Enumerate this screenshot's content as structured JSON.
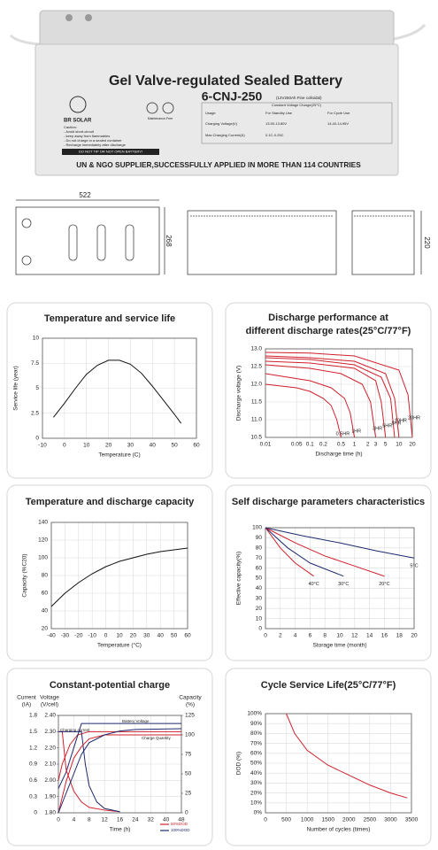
{
  "product": {
    "title": "Gel Valve-regulated Sealed Battery",
    "model": "6-CNJ-250",
    "spec": "(12V250Ah Fine colloidal)",
    "brand": "BR SOLAR",
    "maintenance": "Maintenance-Free",
    "table": {
      "header": "Constant Voltage Charge(25°C)",
      "rows": [
        [
          "Usage",
          "For Standby Use",
          "For Cycle Use"
        ],
        [
          "Charging Voltage(V)",
          "13.50-13.80V",
          "14.40-14.95V"
        ],
        [
          "Max.Charging Current(A)",
          "0.1C-0.25C"
        ]
      ]
    },
    "caution": [
      "Caution:",
      "- Avoid short-circuit",
      "- keep away from flammables",
      "- Do not charge in a sealed container",
      "- Recharge immediately after discharge"
    ],
    "warning": "DO NOT TIP OR NOT OPEN BATTERY!",
    "footer": "UN & NGO SUPPLIER,SUCCESSFULLY APPLIED IN MORE THAN 114 COUNTRIES"
  },
  "dimensions": {
    "length": "522",
    "height": "268",
    "width": "220"
  },
  "chart_data": [
    {
      "type": "line",
      "title": "Temperature and service life",
      "x_label": "Temperature (C)",
      "y_label": "Service life (year)",
      "grid": true,
      "xlim": [
        -10,
        60
      ],
      "xticks": [
        -10,
        0,
        10,
        20,
        30,
        40,
        50,
        60
      ],
      "ylim": [
        0,
        10
      ],
      "yticks": [
        0,
        2.5,
        5,
        7.5,
        10
      ],
      "series": [
        {
          "color": "#111111",
          "x": [
            -5,
            0,
            5,
            10,
            15,
            20,
            25,
            30,
            35,
            40,
            45,
            50,
            53
          ],
          "values": [
            2.1,
            3.5,
            5,
            6.4,
            7.3,
            7.8,
            7.8,
            7.4,
            6.5,
            5.2,
            3.8,
            2.4,
            1.5
          ]
        }
      ]
    },
    {
      "type": "line",
      "title": [
        "Discharge performance at",
        "different discharge rates(25°C/77°F)"
      ],
      "x_label": "Discharge time (h)",
      "y_label": "Discharge voltage (V)",
      "grid": true,
      "xlog": true,
      "xlim": [
        0.01,
        20
      ],
      "xticks": [
        0.01,
        0.05,
        0.1,
        0.2,
        0.5,
        1,
        2,
        3,
        5,
        10,
        20
      ],
      "ylim": [
        10.5,
        13
      ],
      "yticks": [
        10.5,
        {
          "value": 11,
          "label": "11.0"
        },
        11.5,
        {
          "value": 12,
          "label": "12.0"
        },
        12.5,
        {
          "value": 13,
          "label": "13.0"
        }
      ],
      "series": [
        {
          "name": "0.5HR",
          "color": "#d0202c",
          "x": [
            0.01,
            0.05,
            0.1,
            0.2,
            0.3,
            0.4,
            0.5
          ],
          "values": [
            12.0,
            11.9,
            11.8,
            11.6,
            11.4,
            11.0,
            10.5
          ]
        },
        {
          "name": "1HR",
          "color": "#d0202c",
          "x": [
            0.01,
            0.1,
            0.3,
            0.6,
            0.8,
            1
          ],
          "values": [
            12.3,
            12.1,
            11.9,
            11.6,
            11.2,
            10.5
          ]
        },
        {
          "name": "3HR",
          "color": "#d0202c",
          "x": [
            0.01,
            0.1,
            0.5,
            1.5,
            2.3,
            3
          ],
          "values": [
            12.55,
            12.45,
            12.3,
            12.0,
            11.5,
            10.5
          ]
        },
        {
          "name": "5HR",
          "color": "#d0202c",
          "x": [
            0.01,
            0.1,
            1,
            3,
            4,
            5
          ],
          "values": [
            12.65,
            12.6,
            12.45,
            12.1,
            11.5,
            10.5
          ]
        },
        {
          "name": "8HR",
          "color": "#d0202c",
          "x": [
            0.01,
            0.1,
            1,
            4,
            6.5,
            8
          ],
          "values": [
            12.75,
            12.7,
            12.55,
            12.2,
            11.6,
            10.5
          ]
        },
        {
          "name": "10HR",
          "color": "#d0202c",
          "x": [
            0.01,
            0.1,
            1,
            5,
            8,
            10
          ],
          "values": [
            12.8,
            12.75,
            12.65,
            12.3,
            11.6,
            10.5
          ]
        },
        {
          "name": "20HR",
          "color": "#d0202c",
          "x": [
            0.01,
            0.1,
            1,
            10,
            16,
            20
          ],
          "values": [
            12.9,
            12.88,
            12.8,
            12.4,
            11.7,
            10.5
          ]
        }
      ]
    },
    {
      "type": "line",
      "title": "Temperature and discharge capacity",
      "x_label": "Temperature (°C)",
      "y_label": "Capacity (%C20)",
      "grid": true,
      "xlim": [
        -40,
        60
      ],
      "xticks": [
        -40,
        -30,
        -20,
        -10,
        0,
        10,
        20,
        30,
        40,
        50,
        60
      ],
      "ylim": [
        20,
        140
      ],
      "yticks": [
        20,
        40,
        60,
        80,
        100,
        120,
        140
      ],
      "series": [
        {
          "color": "#111111",
          "x": [
            -40,
            -30,
            -20,
            -10,
            0,
            10,
            20,
            30,
            40,
            50,
            60
          ],
          "values": [
            45,
            60,
            72,
            82,
            90,
            96,
            100,
            104,
            107,
            109,
            111
          ]
        }
      ]
    },
    {
      "type": "line",
      "title": "Self discharge parameters characteristics",
      "x_label": "Storage time (month)",
      "y_label": "Effective capacity(%)",
      "grid": true,
      "xlim": [
        0,
        20
      ],
      "xticks": [
        0,
        2,
        4,
        6,
        8,
        10,
        12,
        14,
        16,
        18,
        20
      ],
      "ylim": [
        0,
        100
      ],
      "yticks": [
        0,
        10,
        20,
        30,
        40,
        50,
        60,
        70,
        80,
        90,
        100
      ],
      "series": [
        {
          "name": "40°C",
          "color": "#d0202c",
          "x": [
            0,
            2,
            4,
            6.5
          ],
          "values": [
            100,
            80,
            65,
            52
          ]
        },
        {
          "name": "30°C",
          "color": "#1f2a6e",
          "x": [
            0,
            3,
            6,
            10.5
          ],
          "values": [
            100,
            80,
            65,
            52
          ]
        },
        {
          "name": "20°C",
          "color": "#d0202c",
          "x": [
            0,
            4,
            8,
            12,
            16
          ],
          "values": [
            100,
            85,
            72,
            62,
            52
          ]
        },
        {
          "name": "5°C",
          "color": "#1f2a6e",
          "x": [
            0,
            5,
            10,
            15,
            20
          ],
          "values": [
            100,
            92,
            85,
            77,
            70
          ]
        }
      ]
    },
    {
      "type": "line",
      "title": "Constant-potential charge",
      "x_label": "Time (h)",
      "y_label": [
        "Current",
        "(IA)"
      ],
      "y2_label": [
        "Voltage",
        "(V/cell)"
      ],
      "y3_label": [
        "Capacity",
        "(%)"
      ],
      "grid": true,
      "xscale": "piecewise",
      "xlim": [
        0,
        48
      ],
      "xticks": [
        0,
        4,
        8,
        12,
        16,
        24,
        32,
        40,
        48
      ],
      "ylim": [
        0,
        1.8
      ],
      "yticks": [
        0,
        0.3,
        0.6,
        0.9,
        1.2,
        1.5,
        1.8
      ],
      "y2lim": [
        1.8,
        2.4
      ],
      "y2ticks": [
        {
          "value": 1.8,
          "label": "1.80"
        },
        {
          "value": 1.9,
          "label": "1.90"
        },
        {
          "value": 2,
          "label": "2.00"
        },
        {
          "value": 2.1,
          "label": "2.10"
        },
        {
          "value": 2.2,
          "label": "2.20"
        },
        {
          "value": 2.3,
          "label": "2.30"
        },
        {
          "value": 2.4,
          "label": "2.40"
        }
      ],
      "y3lim": [
        0,
        125
      ],
      "y3ticks": [
        0,
        25,
        50,
        75,
        100,
        125
      ],
      "annotations": [
        "Battery Voltage",
        "Charging current",
        "Charge Quantity"
      ],
      "legend": [
        {
          "name": "50%DOD",
          "color": "#d0202c"
        },
        {
          "name": "100%DOD",
          "color": "#1f2a6e"
        }
      ],
      "series": [
        {
          "axis": "y2",
          "color": "#d0202c",
          "x": [
            0,
            1,
            3,
            5,
            8,
            16,
            48
          ],
          "values": [
            2.0,
            2.1,
            2.22,
            2.28,
            2.3,
            2.3,
            2.3
          ]
        },
        {
          "axis": "y2",
          "color": "#1f2a6e",
          "x": [
            0,
            2,
            4,
            6,
            8,
            48
          ],
          "values": [
            1.95,
            2.05,
            2.2,
            2.35,
            2.35,
            2.35
          ]
        },
        {
          "axis": "y",
          "color": "#d0202c",
          "x": [
            0,
            1,
            2,
            4,
            6,
            8,
            12,
            16
          ],
          "values": [
            1.5,
            1.5,
            0.8,
            0.4,
            0.2,
            0.1,
            0.05,
            0.02
          ]
        },
        {
          "axis": "y",
          "color": "#1f2a6e",
          "x": [
            0,
            6,
            7,
            8,
            10,
            12,
            16
          ],
          "values": [
            1.5,
            1.5,
            0.9,
            0.5,
            0.2,
            0.08,
            0.02
          ]
        },
        {
          "axis": "y3",
          "color": "#d0202c",
          "x": [
            0,
            2,
            4,
            6,
            8,
            12,
            16,
            48
          ],
          "values": [
            0,
            40,
            70,
            85,
            95,
            100,
            100,
            100
          ]
        },
        {
          "axis": "y3",
          "color": "#1f2a6e",
          "x": [
            0,
            2,
            4,
            6,
            8,
            12,
            16,
            24,
            48
          ],
          "values": [
            0,
            25,
            50,
            75,
            90,
            100,
            105,
            107,
            108
          ]
        }
      ]
    },
    {
      "type": "line",
      "title": "Cycle Service Life(25°C/77°F)",
      "x_label": "Number of cycles (times)",
      "y_label": "DOD (%)",
      "grid": true,
      "xlim": [
        0,
        3500
      ],
      "xticks": [
        0,
        500,
        1000,
        1500,
        2000,
        2500,
        3000,
        3500
      ],
      "ylim": [
        0,
        100
      ],
      "yticks": [
        {
          "value": 0,
          "label": "0%"
        },
        {
          "value": 10,
          "label": "10%"
        },
        {
          "value": 20,
          "label": "20%"
        },
        {
          "value": 30,
          "label": "30%"
        },
        {
          "value": 40,
          "label": "40%"
        },
        {
          "value": 50,
          "label": "50%"
        },
        {
          "value": 60,
          "label": "60%"
        },
        {
          "value": 70,
          "label": "70%"
        },
        {
          "value": 80,
          "label": "80%"
        },
        {
          "value": 90,
          "label": "90%"
        },
        {
          "value": 100,
          "label": "100%"
        }
      ],
      "series": [
        {
          "color": "#d0202c",
          "x": [
            500,
            700,
            1000,
            1500,
            2000,
            2500,
            3000,
            3400
          ],
          "values": [
            100,
            80,
            63,
            48,
            38,
            28,
            20,
            15
          ]
        }
      ]
    }
  ]
}
